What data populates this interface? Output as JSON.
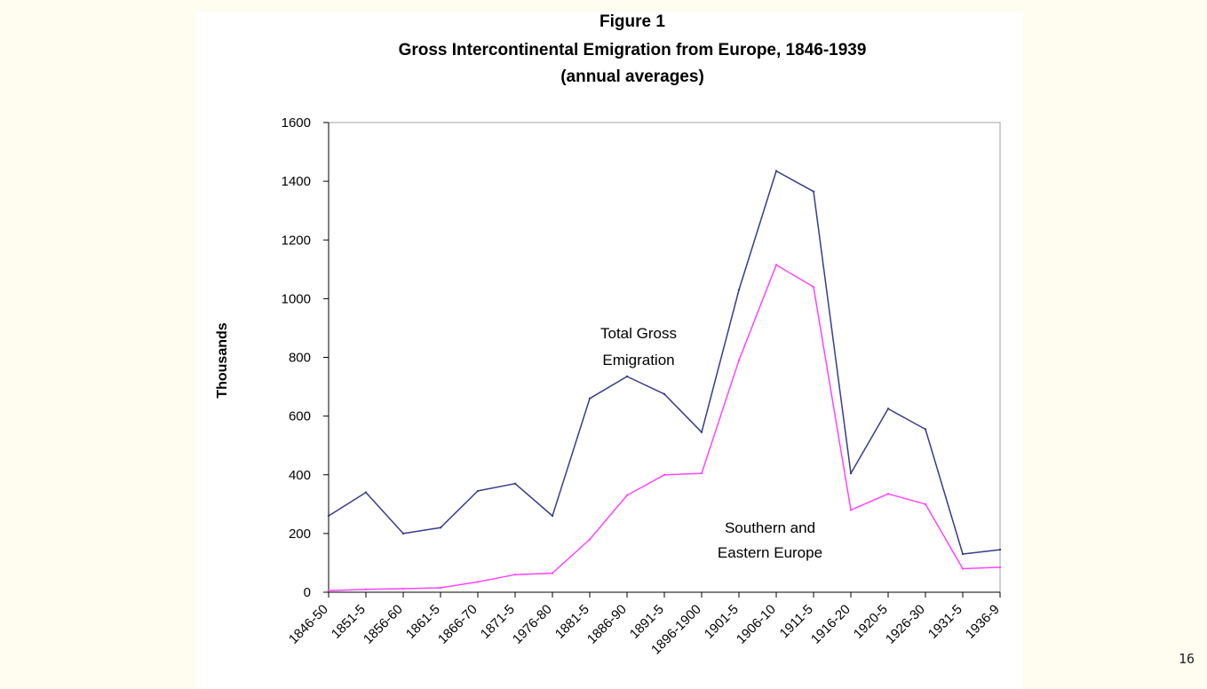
{
  "page": {
    "number": "16"
  },
  "chart_data": {
    "type": "line",
    "title": "Figure 1",
    "subtitle": "Gross Intercontinental Emigration from Europe, 1846-1939",
    "subtitle2": "(annual averages)",
    "xlabel": "",
    "ylabel": "Thousands",
    "ylim": [
      0,
      1600
    ],
    "yticks": [
      0,
      200,
      400,
      600,
      800,
      1000,
      1200,
      1400,
      1600
    ],
    "grid": false,
    "categories": [
      "1846-50",
      "1851-5",
      "1856-60",
      "1861-5",
      "1866-70",
      "1871-5",
      "1976-80",
      "1881-5",
      "1886-90",
      "1891-5",
      "1896-1900",
      "1901-5",
      "1906-10",
      "1911-5",
      "1916-20",
      "1920-5",
      "1926-30",
      "1931-5",
      "1936-9"
    ],
    "series": [
      {
        "name": "Total Gross Emigration",
        "color": "#3a3a8c",
        "values": [
          260,
          340,
          200,
          220,
          345,
          370,
          260,
          660,
          735,
          675,
          545,
          1030,
          1435,
          1365,
          405,
          625,
          555,
          130,
          145
        ]
      },
      {
        "name": "Southern and Eastern Europe",
        "color": "#ff44ff",
        "values": [
          5,
          10,
          12,
          15,
          35,
          60,
          65,
          180,
          330,
          400,
          405,
          790,
          1115,
          1040,
          280,
          335,
          300,
          80,
          85
        ]
      }
    ],
    "annotations": {
      "total_line1": "Total Gross",
      "total_line2": "Emigration",
      "south_line1": "Southern and",
      "south_line2": "Eastern Europe"
    }
  }
}
